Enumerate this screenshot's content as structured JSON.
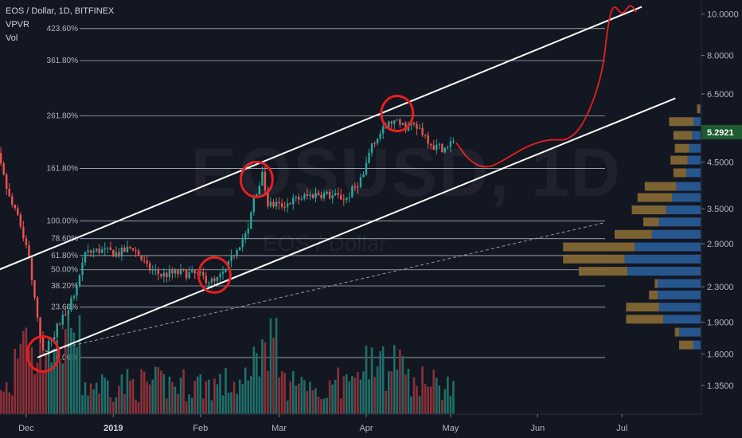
{
  "header": {
    "symbol_line": "EOS / Dollar, 1D, BITFINEX",
    "indicators": [
      "VPVR",
      "Vol"
    ]
  },
  "watermark": {
    "ticker": "EOSUSD, 1D",
    "name": "EOS / Dollar"
  },
  "colors": {
    "background": "#131722",
    "up": "#26a69a",
    "down": "#ef5350",
    "vol_up": "#1f6f68",
    "vol_down": "#8c3039",
    "vpvr_up": "#2a5d9a",
    "vpvr_down": "#8a6a34",
    "channel": "#ffffff",
    "annotation": "#e81e1e",
    "fib": "#c9cdd4",
    "price_badge": "#1e5b30"
  },
  "chart_data": {
    "type": "candlestick",
    "title": "EOS / Dollar, 1D, BITFINEX",
    "y_scale": "log",
    "y_ticks": [
      "10.0000",
      "8.0000",
      "6.5000",
      "5.2921",
      "4.5000",
      "3.5000",
      "2.9000",
      "2.3000",
      "1.9000",
      "1.6000",
      "1.3500"
    ],
    "x_ticks": [
      "Dec",
      "2019",
      "Feb",
      "Mar",
      "Apr",
      "May",
      "Jun",
      "Jul"
    ],
    "last_price": "5.2921",
    "fib_levels": [
      {
        "label": "423.60%",
        "price": 9.25
      },
      {
        "label": "361.80%",
        "price": 7.78
      },
      {
        "label": "261.80%",
        "price": 5.78
      },
      {
        "label": "161.80%",
        "price": 4.35
      },
      {
        "label": "100.00%",
        "price": 3.28
      },
      {
        "label": "78.60%",
        "price": 2.98
      },
      {
        "label": "61.80%",
        "price": 2.72
      },
      {
        "label": "50.00%",
        "price": 2.52
      },
      {
        "label": "38.20%",
        "price": 2.31
      },
      {
        "label": "23.60%",
        "price": 2.06
      },
      {
        "label": "0.00%",
        "price": 1.57
      }
    ],
    "price_path": [
      [
        "2018-11-15",
        5.25
      ],
      [
        "2018-11-20",
        4.9
      ],
      [
        "2018-11-25",
        3.7
      ],
      [
        "2018-11-29",
        3.2
      ],
      [
        "2018-12-02",
        2.7
      ],
      [
        "2018-12-05",
        1.9
      ],
      [
        "2018-12-07",
        1.6
      ],
      [
        "2018-12-10",
        1.75
      ],
      [
        "2018-12-14",
        1.95
      ],
      [
        "2018-12-18",
        2.2
      ],
      [
        "2018-12-22",
        2.75
      ],
      [
        "2018-12-27",
        2.8
      ],
      [
        "2019-01-03",
        2.75
      ],
      [
        "2019-01-08",
        2.85
      ],
      [
        "2019-01-13",
        2.55
      ],
      [
        "2019-01-18",
        2.45
      ],
      [
        "2019-01-25",
        2.48
      ],
      [
        "2019-01-31",
        2.45
      ],
      [
        "2019-02-06",
        2.35
      ],
      [
        "2019-02-10",
        2.5
      ],
      [
        "2019-02-14",
        2.85
      ],
      [
        "2019-02-18",
        3.1
      ],
      [
        "2019-02-20",
        3.7
      ],
      [
        "2019-02-23",
        4.2
      ],
      [
        "2019-02-25",
        3.6
      ],
      [
        "2019-03-01",
        3.55
      ],
      [
        "2019-03-08",
        3.7
      ],
      [
        "2019-03-15",
        3.8
      ],
      [
        "2019-03-25",
        3.7
      ],
      [
        "2019-03-31",
        4.2
      ],
      [
        "2019-04-03",
        5.0
      ],
      [
        "2019-04-10",
        5.6
      ],
      [
        "2019-04-15",
        5.45
      ],
      [
        "2019-04-20",
        5.4
      ],
      [
        "2019-04-25",
        4.9
      ],
      [
        "2019-04-30",
        4.85
      ],
      [
        "2019-05-02",
        5.1
      ]
    ],
    "channel_upper": [
      [
        "2018-11-10",
        2.35
      ],
      [
        "2019-07-08",
        10.4
      ]
    ],
    "channel_lower": [
      [
        "2018-12-05",
        1.57
      ],
      [
        "2019-07-20",
        6.35
      ]
    ],
    "dashed_line": [
      [
        "2018-12-08",
        1.62
      ],
      [
        "2019-06-25",
        3.25
      ]
    ],
    "forecast_path": [
      [
        "2019-05-03",
        5.0
      ],
      [
        "2019-05-08",
        4.5
      ],
      [
        "2019-05-14",
        4.35
      ],
      [
        "2019-05-20",
        4.55
      ],
      [
        "2019-05-28",
        4.9
      ],
      [
        "2019-06-05",
        5.1
      ],
      [
        "2019-06-12",
        5.05
      ],
      [
        "2019-06-18",
        5.6
      ],
      [
        "2019-06-24",
        7.2
      ],
      [
        "2019-06-26",
        9.5
      ],
      [
        "2019-06-28",
        10.6
      ],
      [
        "2019-07-01",
        9.9
      ],
      [
        "2019-07-04",
        10.6
      ],
      [
        "2019-07-06",
        10.1
      ]
    ],
    "annotation_circles": [
      [
        "2018-12-07",
        1.6
      ],
      [
        "2019-02-21",
        4.1
      ],
      [
        "2019-02-06",
        2.45
      ],
      [
        "2019-04-12",
        5.85
      ]
    ],
    "vpvr": [
      {
        "price": 6.0,
        "up": 0.005,
        "down": 0.02
      },
      {
        "price": 5.6,
        "up": 0.05,
        "down": 0.17
      },
      {
        "price": 5.2,
        "up": 0.06,
        "down": 0.13
      },
      {
        "price": 4.85,
        "up": 0.08,
        "down": 0.1
      },
      {
        "price": 4.55,
        "up": 0.09,
        "down": 0.12
      },
      {
        "price": 4.25,
        "up": 0.1,
        "down": 0.09
      },
      {
        "price": 3.95,
        "up": 0.17,
        "down": 0.22
      },
      {
        "price": 3.72,
        "up": 0.2,
        "down": 0.24
      },
      {
        "price": 3.48,
        "up": 0.24,
        "down": 0.24
      },
      {
        "price": 3.26,
        "up": 0.29,
        "down": 0.11
      },
      {
        "price": 3.05,
        "up": 0.34,
        "down": 0.26
      },
      {
        "price": 2.85,
        "up": 0.46,
        "down": 0.5
      },
      {
        "price": 2.67,
        "up": 0.53,
        "down": 0.43
      },
      {
        "price": 2.5,
        "up": 0.51,
        "down": 0.34
      },
      {
        "price": 2.34,
        "up": 0.3,
        "down": 0.02
      },
      {
        "price": 2.2,
        "up": 0.3,
        "down": 0.06
      },
      {
        "price": 2.06,
        "up": 0.29,
        "down": 0.23
      },
      {
        "price": 1.93,
        "up": 0.26,
        "down": 0.26
      },
      {
        "price": 1.8,
        "up": 0.15,
        "down": 0.03
      },
      {
        "price": 1.68,
        "up": 0.05,
        "down": 0.1
      }
    ]
  }
}
